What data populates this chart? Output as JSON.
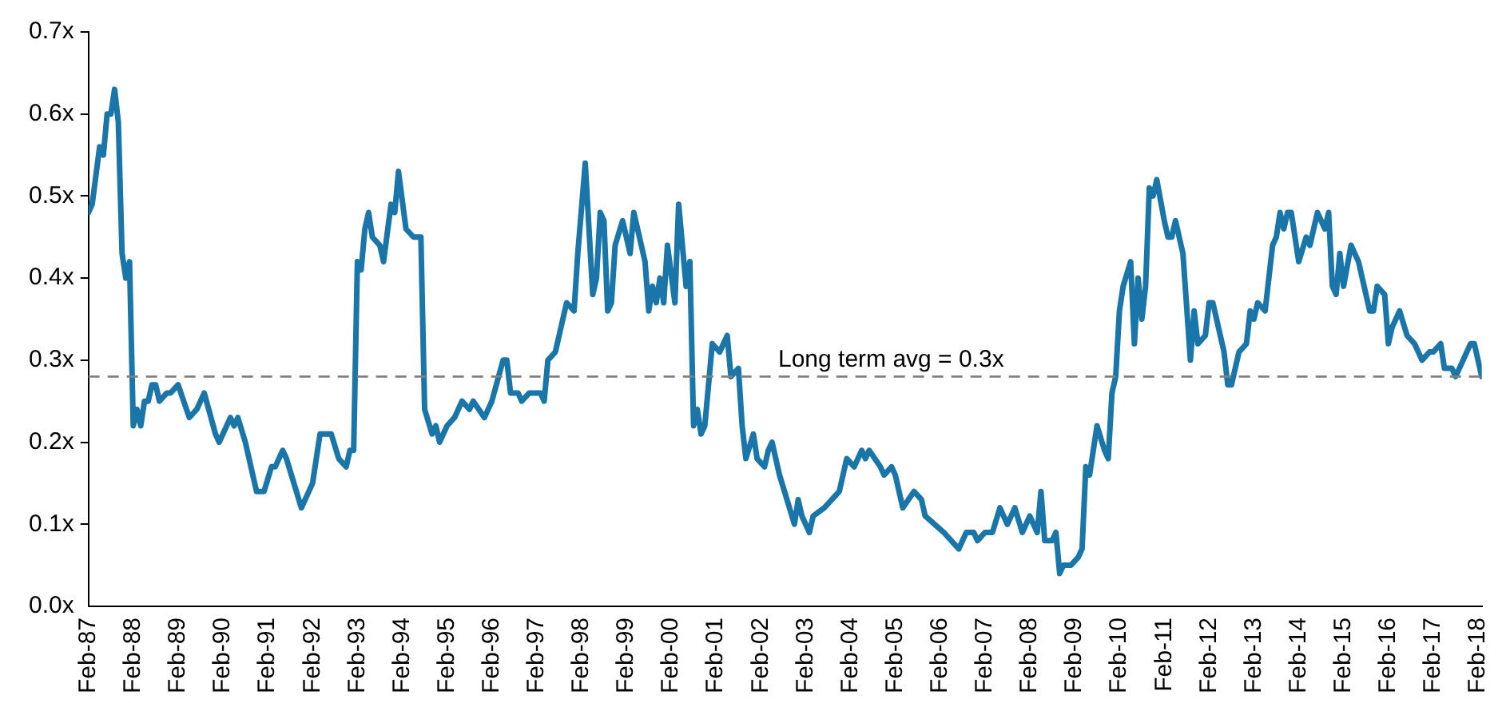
{
  "chart_data": {
    "type": "line",
    "color": "#1a75a8",
    "marker": "none",
    "x": [
      "1987-02",
      "1987-03",
      "1987-05",
      "1987-06",
      "1987-07",
      "1987-08",
      "1987-09",
      "1987-10",
      "1987-11",
      "1987-12",
      "1988-01",
      "1988-02",
      "1988-03",
      "1988-04",
      "1988-05",
      "1988-06",
      "1988-07",
      "1988-08",
      "1988-09",
      "1988-11",
      "1988-12",
      "1989-02",
      "1989-05",
      "1989-07",
      "1989-09",
      "1989-12",
      "1990-01",
      "1990-04",
      "1990-05",
      "1990-06",
      "1990-08",
      "1990-11",
      "1991-01",
      "1991-03",
      "1991-04",
      "1991-06",
      "1991-07",
      "1991-09",
      "1991-11",
      "1992-02",
      "1992-03",
      "1992-04",
      "1992-06",
      "1992-07",
      "1992-09",
      "1992-11",
      "1992-12",
      "1993-01",
      "1993-02",
      "1993-03",
      "1993-04",
      "1993-05",
      "1993-06",
      "1993-08",
      "1993-09",
      "1993-11",
      "1993-12",
      "1994-01",
      "1994-03",
      "1994-05",
      "1994-07",
      "1994-08",
      "1994-10",
      "1994-11",
      "1994-12",
      "1995-02",
      "1995-04",
      "1995-06",
      "1995-08",
      "1995-09",
      "1995-12",
      "1996-02",
      "1996-05",
      "1996-06",
      "1996-07",
      "1996-09",
      "1996-10",
      "1996-12",
      "1997-01",
      "1997-03",
      "1997-04",
      "1997-05",
      "1997-07",
      "1997-10",
      "1997-12",
      "1998-01",
      "1998-03",
      "1998-05",
      "1998-06",
      "1998-07",
      "1998-08",
      "1998-09",
      "1998-10",
      "1998-11",
      "1999-01",
      "1999-03",
      "1999-04",
      "1999-06",
      "1999-07",
      "1999-08",
      "1999-09",
      "1999-10",
      "1999-11",
      "1999-12",
      "2000-01",
      "2000-03",
      "2000-04",
      "2000-06",
      "2000-07",
      "2000-08",
      "2000-09",
      "2000-10",
      "2000-11",
      "2001-01",
      "2001-03",
      "2001-05",
      "2001-06",
      "2001-08",
      "2001-09",
      "2001-10",
      "2001-12",
      "2002-01",
      "2002-03",
      "2002-04",
      "2002-05",
      "2002-07",
      "2002-11",
      "2002-12",
      "2003-01",
      "2003-03",
      "2003-04",
      "2003-07",
      "2003-09",
      "2003-11",
      "2004-01",
      "2004-03",
      "2004-05",
      "2004-06",
      "2004-07",
      "2004-10",
      "2004-11",
      "2005-01",
      "2005-02",
      "2005-04",
      "2005-07",
      "2005-09",
      "2005-10",
      "2006-03",
      "2006-05",
      "2006-07",
      "2006-09",
      "2006-11",
      "2006-12",
      "2007-02",
      "2007-04",
      "2007-06",
      "2007-08",
      "2007-10",
      "2007-12",
      "2008-02",
      "2008-03",
      "2008-04",
      "2008-05",
      "2008-06",
      "2008-08",
      "2008-09",
      "2008-10",
      "2008-11",
      "2009-01",
      "2009-03",
      "2009-04",
      "2009-05",
      "2009-06",
      "2009-08",
      "2009-10",
      "2009-11",
      "2009-12",
      "2010-01",
      "2010-02",
      "2010-03",
      "2010-05",
      "2010-06",
      "2010-07",
      "2010-08",
      "2010-09",
      "2010-10",
      "2010-11",
      "2010-12",
      "2011-02",
      "2011-03",
      "2011-04",
      "2011-05",
      "2011-07",
      "2011-09",
      "2011-10",
      "2011-11",
      "2012-01",
      "2012-02",
      "2012-03",
      "2012-06",
      "2012-07",
      "2012-08",
      "2012-10",
      "2012-12",
      "2013-01",
      "2013-02",
      "2013-03",
      "2013-05",
      "2013-07",
      "2013-08",
      "2013-09",
      "2013-10",
      "2013-11",
      "2013-12",
      "2014-02",
      "2014-04",
      "2014-05",
      "2014-07",
      "2014-09",
      "2014-10",
      "2014-11",
      "2014-12",
      "2015-01",
      "2015-02",
      "2015-04",
      "2015-06",
      "2015-07",
      "2015-09",
      "2015-10",
      "2015-11",
      "2016-01",
      "2016-02",
      "2016-03",
      "2016-05",
      "2016-07",
      "2016-09",
      "2016-10",
      "2016-11",
      "2017-01",
      "2017-02",
      "2017-04",
      "2017-05",
      "2017-07",
      "2017-08",
      "2017-10",
      "2017-12",
      "2018-01",
      "2018-03"
    ],
    "values": [
      0.48,
      0.49,
      0.56,
      0.55,
      0.6,
      0.6,
      0.63,
      0.59,
      0.43,
      0.4,
      0.42,
      0.22,
      0.24,
      0.22,
      0.25,
      0.25,
      0.27,
      0.27,
      0.25,
      0.26,
      0.26,
      0.27,
      0.23,
      0.24,
      0.26,
      0.21,
      0.2,
      0.23,
      0.22,
      0.23,
      0.2,
      0.14,
      0.14,
      0.17,
      0.17,
      0.19,
      0.18,
      0.15,
      0.12,
      0.15,
      0.18,
      0.21,
      0.21,
      0.21,
      0.18,
      0.17,
      0.19,
      0.19,
      0.42,
      0.41,
      0.46,
      0.48,
      0.45,
      0.44,
      0.42,
      0.49,
      0.48,
      0.53,
      0.46,
      0.45,
      0.45,
      0.24,
      0.21,
      0.22,
      0.2,
      0.22,
      0.23,
      0.25,
      0.24,
      0.25,
      0.23,
      0.25,
      0.3,
      0.3,
      0.26,
      0.26,
      0.25,
      0.26,
      0.26,
      0.26,
      0.25,
      0.3,
      0.31,
      0.37,
      0.36,
      0.43,
      0.54,
      0.38,
      0.4,
      0.48,
      0.47,
      0.36,
      0.37,
      0.44,
      0.47,
      0.43,
      0.48,
      0.44,
      0.42,
      0.36,
      0.39,
      0.37,
      0.4,
      0.37,
      0.44,
      0.37,
      0.49,
      0.39,
      0.42,
      0.22,
      0.24,
      0.21,
      0.22,
      0.32,
      0.31,
      0.33,
      0.28,
      0.29,
      0.22,
      0.18,
      0.21,
      0.18,
      0.17,
      0.19,
      0.2,
      0.16,
      0.1,
      0.13,
      0.11,
      0.09,
      0.11,
      0.12,
      0.13,
      0.14,
      0.18,
      0.17,
      0.19,
      0.18,
      0.19,
      0.17,
      0.16,
      0.17,
      0.16,
      0.12,
      0.14,
      0.13,
      0.11,
      0.09,
      0.08,
      0.07,
      0.09,
      0.09,
      0.08,
      0.09,
      0.09,
      0.12,
      0.1,
      0.12,
      0.09,
      0.11,
      0.1,
      0.09,
      0.14,
      0.08,
      0.08,
      0.09,
      0.04,
      0.05,
      0.05,
      0.06,
      0.07,
      0.17,
      0.16,
      0.22,
      0.19,
      0.18,
      0.26,
      0.28,
      0.36,
      0.39,
      0.42,
      0.32,
      0.4,
      0.35,
      0.39,
      0.51,
      0.5,
      0.52,
      0.47,
      0.45,
      0.45,
      0.47,
      0.43,
      0.3,
      0.36,
      0.32,
      0.33,
      0.37,
      0.37,
      0.31,
      0.27,
      0.27,
      0.31,
      0.32,
      0.36,
      0.35,
      0.37,
      0.36,
      0.44,
      0.45,
      0.48,
      0.46,
      0.48,
      0.48,
      0.42,
      0.45,
      0.44,
      0.48,
      0.46,
      0.48,
      0.39,
      0.38,
      0.43,
      0.39,
      0.44,
      0.42,
      0.4,
      0.36,
      0.36,
      0.39,
      0.38,
      0.32,
      0.34,
      0.36,
      0.33,
      0.32,
      0.31,
      0.3,
      0.31,
      0.31,
      0.32,
      0.29,
      0.29,
      0.28,
      0.3,
      0.32,
      0.32,
      0.28
    ],
    "xlim": [
      "1987-02",
      "2018-03"
    ],
    "xticks": [
      {
        "value": "1987-02",
        "label": "Feb-87"
      },
      {
        "value": "1988-02",
        "label": "Feb-88"
      },
      {
        "value": "1989-02",
        "label": "Feb-89"
      },
      {
        "value": "1990-02",
        "label": "Feb-90"
      },
      {
        "value": "1991-02",
        "label": "Feb-91"
      },
      {
        "value": "1992-02",
        "label": "Feb-92"
      },
      {
        "value": "1993-02",
        "label": "Feb-93"
      },
      {
        "value": "1994-02",
        "label": "Feb-94"
      },
      {
        "value": "1995-02",
        "label": "Feb-95"
      },
      {
        "value": "1996-02",
        "label": "Feb-96"
      },
      {
        "value": "1997-02",
        "label": "Feb-97"
      },
      {
        "value": "1998-02",
        "label": "Feb-98"
      },
      {
        "value": "1999-02",
        "label": "Feb-99"
      },
      {
        "value": "2000-02",
        "label": "Feb-00"
      },
      {
        "value": "2001-02",
        "label": "Feb-01"
      },
      {
        "value": "2002-02",
        "label": "Feb-02"
      },
      {
        "value": "2003-02",
        "label": "Feb-03"
      },
      {
        "value": "2004-02",
        "label": "Feb-04"
      },
      {
        "value": "2005-02",
        "label": "Feb-05"
      },
      {
        "value": "2006-02",
        "label": "Feb-06"
      },
      {
        "value": "2007-02",
        "label": "Feb-07"
      },
      {
        "value": "2008-02",
        "label": "Feb-08"
      },
      {
        "value": "2009-02",
        "label": "Feb-09"
      },
      {
        "value": "2010-02",
        "label": "Feb-10"
      },
      {
        "value": "2011-02",
        "label": "Feb-11"
      },
      {
        "value": "2012-02",
        "label": "Feb-12"
      },
      {
        "value": "2013-02",
        "label": "Feb-13"
      },
      {
        "value": "2014-02",
        "label": "Feb-14"
      },
      {
        "value": "2015-02",
        "label": "Feb-15"
      },
      {
        "value": "2016-02",
        "label": "Feb-16"
      },
      {
        "value": "2017-02",
        "label": "Feb-17"
      },
      {
        "value": "2018-02",
        "label": "Feb-18"
      }
    ],
    "ylim": [
      0,
      0.7
    ],
    "yticks": [
      {
        "value": 0,
        "label": "0.0x"
      },
      {
        "value": 0.1,
        "label": "0.1x"
      },
      {
        "value": 0.2,
        "label": "0.2x"
      },
      {
        "value": 0.3,
        "label": "0.3x"
      },
      {
        "value": 0.4,
        "label": "0.4x"
      },
      {
        "value": 0.5,
        "label": "0.5x"
      },
      {
        "value": 0.6,
        "label": "0.6x"
      },
      {
        "value": 0.7,
        "label": "0.7x"
      }
    ],
    "ref_lines": [
      {
        "axis": "y",
        "value": 0.28,
        "label": "Long term avg = 0.3x",
        "color": "#808080",
        "line_style": "dashed"
      }
    ],
    "grid": false,
    "legend": false
  }
}
